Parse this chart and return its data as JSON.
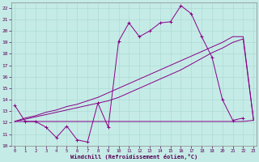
{
  "xlabel": "Windchill (Refroidissement éolien,°C)",
  "bg_color": "#c5ebe6",
  "grid_color": "#a8d8d2",
  "line_color": "#880088",
  "xlim": [
    -0.3,
    23.3
  ],
  "ylim": [
    10,
    22.5
  ],
  "xticks": [
    0,
    1,
    2,
    3,
    4,
    5,
    6,
    7,
    8,
    9,
    10,
    11,
    12,
    13,
    14,
    15,
    16,
    17,
    18,
    19,
    20,
    21,
    22,
    23
  ],
  "yticks": [
    10,
    11,
    12,
    13,
    14,
    15,
    16,
    17,
    18,
    19,
    20,
    21,
    22
  ],
  "line1_x": [
    0,
    1,
    2,
    3,
    4,
    5,
    6,
    7,
    8,
    9,
    10,
    11,
    12,
    13,
    14,
    15,
    16,
    17,
    18,
    19,
    20,
    21,
    22
  ],
  "line1_y": [
    13.5,
    12.1,
    12.1,
    11.6,
    10.7,
    11.7,
    10.5,
    10.3,
    13.7,
    11.6,
    19.1,
    20.7,
    19.5,
    20.0,
    20.7,
    20.8,
    22.2,
    21.5,
    19.5,
    17.7,
    14.0,
    12.2,
    12.4
  ],
  "line2_x": [
    0,
    1,
    2,
    3,
    4,
    5,
    6,
    7,
    8,
    9,
    10,
    11,
    12,
    13,
    14,
    15,
    16,
    17,
    18,
    19,
    20,
    21,
    22,
    23
  ],
  "line2_y": [
    12.1,
    12.1,
    12.1,
    12.1,
    12.1,
    12.1,
    12.1,
    12.1,
    12.1,
    12.1,
    12.1,
    12.1,
    12.1,
    12.1,
    12.1,
    12.1,
    12.1,
    12.1,
    12.1,
    12.1,
    12.1,
    12.1,
    12.1,
    12.2
  ],
  "line3_x": [
    0,
    1,
    2,
    3,
    4,
    5,
    6,
    7,
    8,
    9,
    10,
    11,
    12,
    13,
    14,
    15,
    16,
    17,
    18,
    19,
    20,
    21,
    22,
    23
  ],
  "line3_y": [
    12.1,
    12.4,
    12.6,
    12.9,
    13.1,
    13.4,
    13.6,
    13.9,
    14.2,
    14.6,
    15.0,
    15.4,
    15.8,
    16.2,
    16.6,
    17.0,
    17.4,
    17.8,
    18.2,
    18.6,
    19.0,
    19.5,
    19.5,
    12.2
  ],
  "line4_x": [
    0,
    1,
    2,
    3,
    4,
    5,
    6,
    7,
    8,
    9,
    10,
    11,
    12,
    13,
    14,
    15,
    16,
    17,
    18,
    19,
    20,
    21,
    22,
    23
  ],
  "line4_y": [
    12.1,
    12.3,
    12.5,
    12.7,
    12.9,
    13.1,
    13.3,
    13.5,
    13.7,
    13.9,
    14.2,
    14.6,
    15.0,
    15.4,
    15.8,
    16.2,
    16.6,
    17.1,
    17.6,
    18.1,
    18.5,
    19.0,
    19.3,
    12.2
  ]
}
